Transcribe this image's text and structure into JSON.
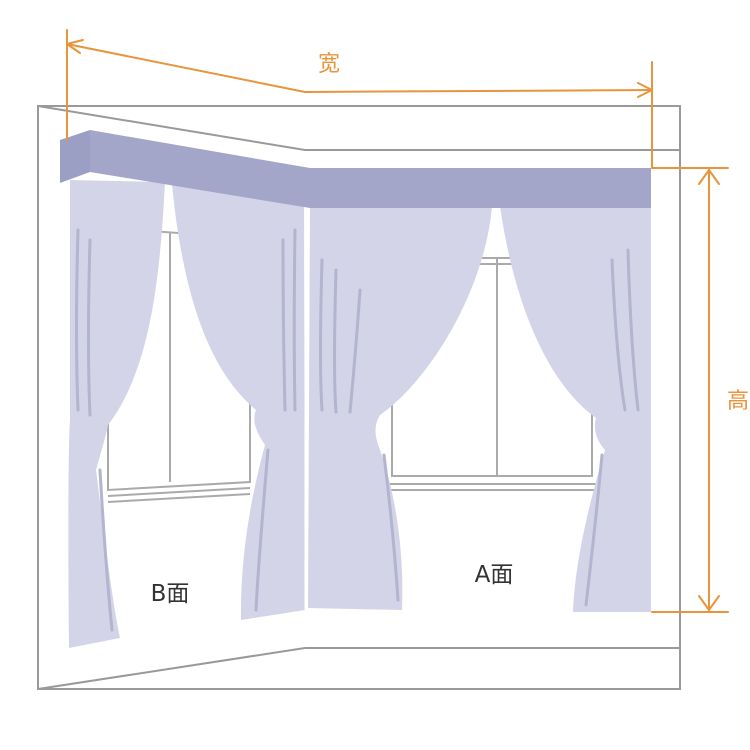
{
  "labels": {
    "width": "宽",
    "height": "高",
    "face_a": "A面",
    "face_b": "B面"
  },
  "colors": {
    "dimension": "#E8943A",
    "wall_line": "#999999",
    "curtain": "#D3D4E8",
    "curtain_fold": "#B3B4CE",
    "pelmet_front": "#A3A6C8",
    "pelmet_side": "#9C9FC4",
    "window_frame": "#AAAAAA"
  }
}
